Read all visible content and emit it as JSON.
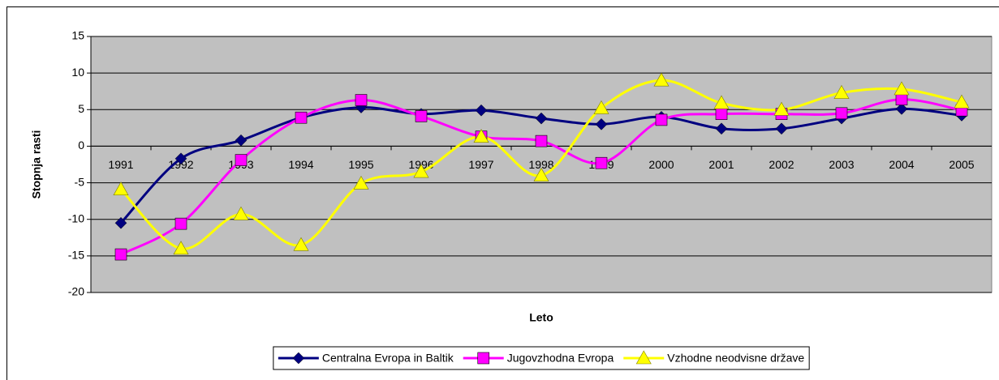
{
  "chart_data": {
    "type": "line",
    "y_axis_label": "Stopnja rasti",
    "x_axis_label": "Leto",
    "categories": [
      "1991",
      "1992",
      "1993",
      "1994",
      "1995",
      "1996",
      "1997",
      "1998",
      "1999",
      "2000",
      "2001",
      "2002",
      "2003",
      "2004",
      "2005"
    ],
    "series": [
      {
        "name": "Centralna Evropa in Baltik",
        "color": "#000080",
        "marker": "diamond",
        "values": [
          -10.5,
          -1.7,
          0.8,
          3.9,
          5.3,
          4.4,
          4.9,
          3.8,
          3.0,
          4.0,
          2.4,
          2.4,
          3.8,
          5.1,
          4.2
        ]
      },
      {
        "name": "Jugovzhodna Evropa",
        "color": "#ff00ff",
        "marker": "square",
        "values": [
          -14.8,
          -10.6,
          -1.9,
          3.9,
          6.3,
          4.1,
          1.3,
          0.7,
          -2.3,
          3.6,
          4.4,
          4.4,
          4.5,
          6.4,
          4.9
        ]
      },
      {
        "name": "Vzhodne neodvisne države",
        "color": "#ffff00",
        "marker": "triangle",
        "values": [
          -5.9,
          -14.0,
          -9.3,
          -13.5,
          -5.1,
          -3.5,
          1.3,
          -4.0,
          5.2,
          9.0,
          5.9,
          5.0,
          7.3,
          7.8,
          6.0
        ]
      }
    ],
    "ylim": [
      -20,
      15
    ],
    "yticks": [
      15,
      10,
      5,
      0,
      -5,
      -10,
      -15,
      -20
    ],
    "xaxis_crosses": 0,
    "grid": true,
    "smooth": true,
    "legend": "bottom",
    "plot_background": "#c0c0c0"
  }
}
